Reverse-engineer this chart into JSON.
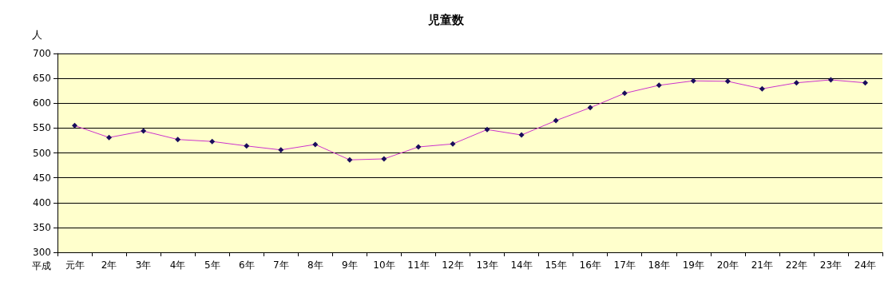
{
  "chart_data": {
    "type": "line",
    "title": "児童数",
    "ylabel": "人",
    "xlabel": "平成",
    "categories": [
      "元年",
      "2年",
      "3年",
      "4年",
      "5年",
      "6年",
      "7年",
      "8年",
      "9年",
      "10年",
      "11年",
      "12年",
      "13年",
      "14年",
      "15年",
      "16年",
      "17年",
      "18年",
      "19年",
      "20年",
      "21年",
      "22年",
      "23年",
      "24年"
    ],
    "series": [
      {
        "color": "#cc33cc",
        "values": [
          555,
          531,
          544,
          527,
          523,
          514,
          506,
          517,
          486,
          488,
          512,
          518,
          547,
          536,
          565,
          591,
          620,
          636,
          645,
          644,
          629,
          641,
          647,
          641
        ]
      }
    ],
    "ylim": [
      300,
      700
    ],
    "yticks": [
      300,
      350,
      400,
      450,
      500,
      550,
      600,
      650,
      700
    ],
    "grid": "y",
    "marker": "diamond",
    "line_style": "solid"
  }
}
